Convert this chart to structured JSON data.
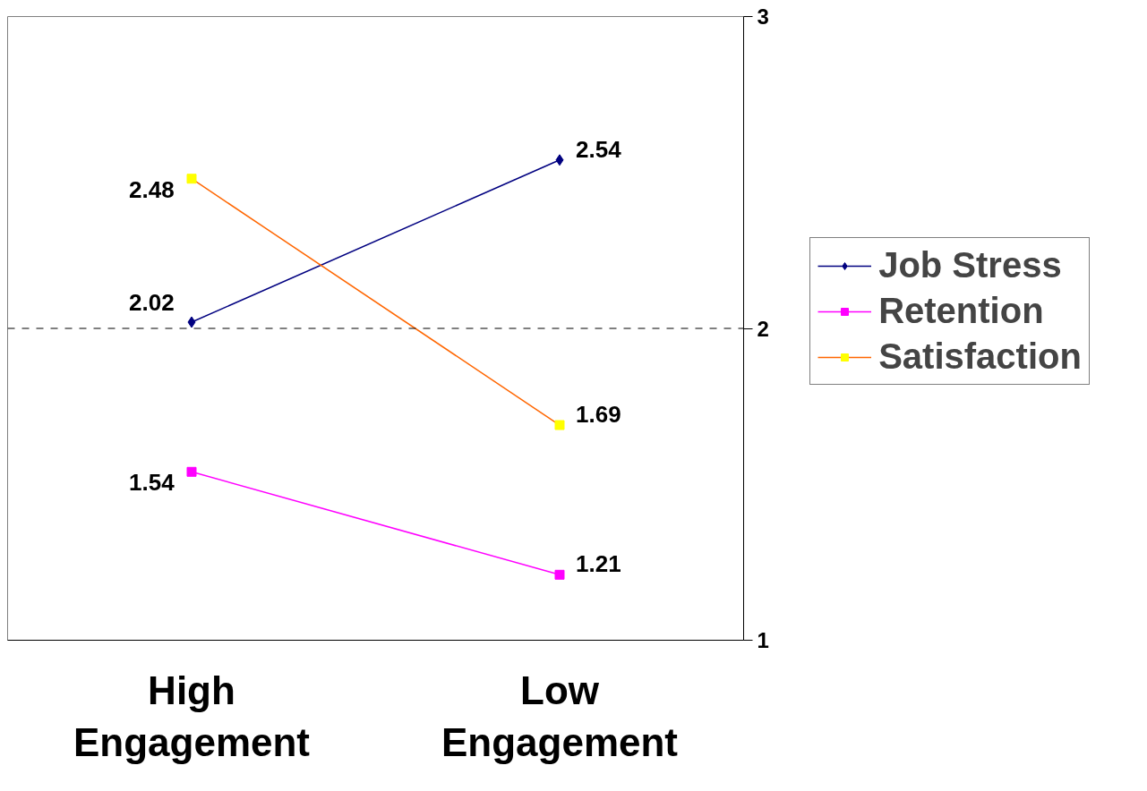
{
  "chart_data": {
    "type": "line",
    "categories": [
      "High Engagement",
      "Low Engagement"
    ],
    "ylim": [
      1,
      3
    ],
    "yticks": [
      1,
      2,
      3
    ],
    "grid": false,
    "legend": "right",
    "data_labels": true,
    "ref_lines": [
      {
        "axis": "y",
        "value": 2,
        "line_style": "dashed",
        "color": "#000000"
      }
    ],
    "series": [
      {
        "name": "Job Stress",
        "color": "#000080",
        "colors": [
          "#000080",
          "#000080"
        ],
        "marker": "diamond",
        "values": [
          2.02,
          2.54
        ]
      },
      {
        "name": "Retention",
        "color": "#ff00ff",
        "colors": [
          "#ff00ff",
          "#ff00ff"
        ],
        "marker": "square",
        "values": [
          1.54,
          1.21
        ]
      },
      {
        "name": "Satisfaction",
        "color": "#ff6600",
        "colors": [
          "#ffff00",
          "#ffff00"
        ],
        "marker": "square",
        "values": [
          2.48,
          1.69
        ]
      }
    ]
  }
}
